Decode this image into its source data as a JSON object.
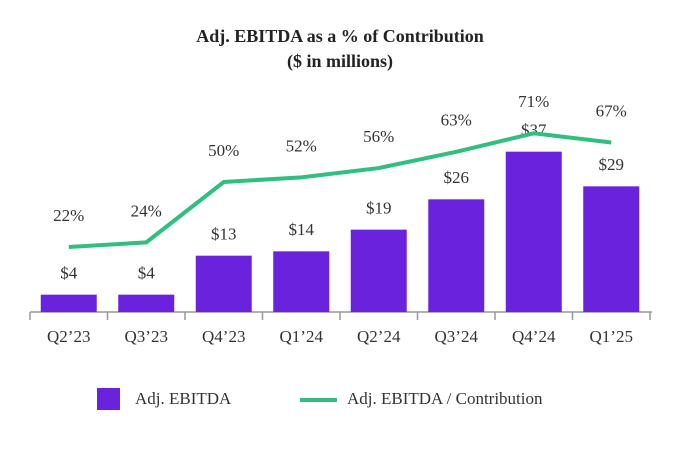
{
  "chart_data": {
    "type": "bar_line",
    "title": "Adj. EBITDA as a % of Contribution",
    "subtitle": "($ in millions)",
    "categories": [
      "Q2’23",
      "Q3’23",
      "Q4’23",
      "Q1’24",
      "Q2’24",
      "Q3’24",
      "Q4’24",
      "Q1’25"
    ],
    "series": [
      {
        "name": "Adj. EBITDA",
        "type": "bar",
        "color": "#6a22dc",
        "values": [
          4,
          4,
          13,
          14,
          19,
          26,
          37,
          29
        ],
        "value_labels": [
          "$4",
          "$4",
          "$13",
          "$14",
          "$19",
          "$26",
          "$37",
          "$29"
        ]
      },
      {
        "name": "Adj. EBITDA / Contribution",
        "type": "line",
        "axis": "y2",
        "color": "#2fbf7f",
        "values": [
          22,
          24,
          50,
          52,
          56,
          63,
          71,
          67
        ],
        "value_labels": [
          "22%",
          "24%",
          "50%",
          "52%",
          "56%",
          "63%",
          "71%",
          "67%"
        ]
      }
    ],
    "ylim": [
      0,
      45
    ],
    "y2lim": [
      -6,
      78
    ],
    "legend": "bottom"
  }
}
